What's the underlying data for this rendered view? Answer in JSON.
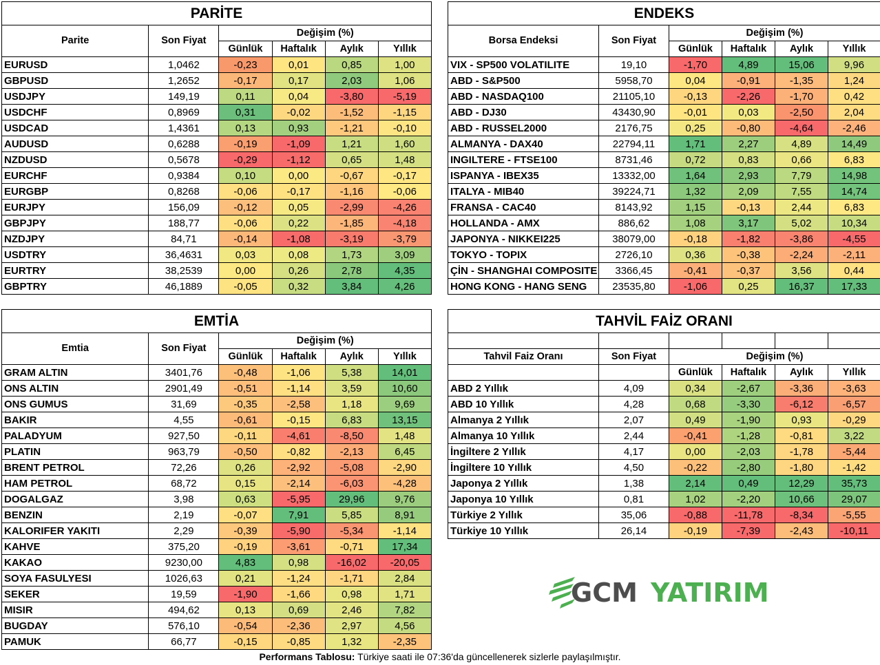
{
  "parite": {
    "title": "PARİTE",
    "col_name": "Parite",
    "col_price": "Son Fiyat",
    "col_change": "Değişim (%)",
    "periods": [
      "Günlük",
      "Haftalık",
      "Aylık",
      "Yıllık"
    ],
    "rows": [
      [
        "EURUSD",
        "1,0462",
        "-0,23",
        "0,01",
        "0,85",
        "1,00"
      ],
      [
        "GBPUSD",
        "1,2652",
        "-0,17",
        "0,17",
        "2,03",
        "1,06"
      ],
      [
        "USDJPY",
        "149,19",
        "0,11",
        "0,04",
        "-3,80",
        "-5,19"
      ],
      [
        "USDCHF",
        "0,8969",
        "0,31",
        "-0,02",
        "-1,52",
        "-1,15"
      ],
      [
        "USDCAD",
        "1,4361",
        "0,13",
        "0,93",
        "-1,21",
        "-0,10"
      ],
      [
        "AUDUSD",
        "0,6288",
        "-0,19",
        "-1,09",
        "1,21",
        "1,60"
      ],
      [
        "NZDUSD",
        "0,5678",
        "-0,29",
        "-1,12",
        "0,65",
        "1,48"
      ],
      [
        "EURCHF",
        "0,9384",
        "0,10",
        "0,00",
        "-0,67",
        "-0,17"
      ],
      [
        "EURGBP",
        "0,8268",
        "-0,06",
        "-0,17",
        "-1,16",
        "-0,06"
      ],
      [
        "EURJPY",
        "156,09",
        "-0,12",
        "0,05",
        "-2,99",
        "-4,26"
      ],
      [
        "GBPJPY",
        "188,77",
        "-0,06",
        "0,22",
        "-1,85",
        "-4,18"
      ],
      [
        "NZDJPY",
        "84,71",
        "-0,14",
        "-1,08",
        "-3,19",
        "-3,79"
      ],
      [
        "USDTRY",
        "36,4631",
        "0,03",
        "0,08",
        "1,73",
        "3,09"
      ],
      [
        "EURTRY",
        "38,2539",
        "0,00",
        "0,26",
        "2,78",
        "4,35"
      ],
      [
        "GBPTRY",
        "46,1889",
        "-0,05",
        "0,32",
        "3,84",
        "4,26"
      ]
    ],
    "colors": [
      [
        "#f8996b",
        "#fee582",
        "#b9d880",
        "#dfe282"
      ],
      [
        "#fbb778",
        "#e1e383",
        "#90ca7d",
        "#dee282"
      ],
      [
        "#bdd981",
        "#f7e983",
        "#f8696b",
        "#f8696b"
      ],
      [
        "#6bbe7b",
        "#fed880",
        "#fdbd7a",
        "#fed680"
      ],
      [
        "#b5d781",
        "#a3d07f",
        "#fec97d",
        "#fee583"
      ],
      [
        "#fa9f6f",
        "#f8696b",
        "#c8dc81",
        "#d0de82"
      ],
      [
        "#f8696b",
        "#f86b6b",
        "#d3df82",
        "#d5e082"
      ],
      [
        "#c6dc81",
        "#fbe983",
        "#fed680",
        "#fee683"
      ],
      [
        "#fee082",
        "#fee282",
        "#fec57d",
        "#fee983"
      ],
      [
        "#fdc07c",
        "#f6e983",
        "#f98a71",
        "#f98270"
      ],
      [
        "#fee082",
        "#dce283",
        "#fdb679",
        "#f98471"
      ],
      [
        "#fcb878",
        "#f86b6b",
        "#f87b6e",
        "#fa9773"
      ],
      [
        "#f2e883",
        "#edea84",
        "#b1d580",
        "#9fcf7e"
      ],
      [
        "#fce983",
        "#d4e082",
        "#8ac87c",
        "#63be7b"
      ],
      [
        "#fee383",
        "#c8dc81",
        "#63be7b",
        "#65be7b"
      ]
    ]
  },
  "endeks": {
    "title": "ENDEKS",
    "col_name": "Borsa Endeksi",
    "col_price": "Son Fiyat",
    "col_change": "Değişim (%)",
    "periods": [
      "Günlük",
      "Haftalık",
      "Aylık",
      "Yıllık"
    ],
    "rows": [
      [
        "VIX  - SP500 VOLATILITE",
        "19,10",
        "-1,70",
        "4,89",
        "15,06",
        "9,96"
      ],
      [
        "ABD - S&P500",
        "5958,70",
        "0,04",
        "-0,91",
        "-1,35",
        "1,24"
      ],
      [
        "ABD - NASDAQ100",
        "21105,10",
        "-0,13",
        "-2,26",
        "-1,70",
        "0,42"
      ],
      [
        "ABD - DJ30",
        "43430,90",
        "-0,01",
        "0,03",
        "-2,50",
        "2,04"
      ],
      [
        "ABD - RUSSEL2000",
        "2176,75",
        "0,25",
        "-0,80",
        "-4,64",
        "-2,46"
      ],
      [
        "ALMANYA - DAX40",
        "22794,11",
        "1,71",
        "2,27",
        "4,89",
        "14,49"
      ],
      [
        "INGILTERE - FTSE100",
        "8731,46",
        "0,72",
        "0,83",
        "0,66",
        "6,83"
      ],
      [
        "ISPANYA - IBEX35",
        "13332,00",
        "1,64",
        "2,93",
        "7,79",
        "14,98"
      ],
      [
        "ITALYA - MIB40",
        "39224,71",
        "1,32",
        "2,09",
        "7,55",
        "14,74"
      ],
      [
        "FRANSA - CAC40",
        "8143,92",
        "1,15",
        "-0,13",
        "2,44",
        "6,83"
      ],
      [
        "HOLLANDA - AMX",
        "886,62",
        "1,08",
        "3,17",
        "5,02",
        "10,34"
      ],
      [
        "JAPONYA - NIKKEI225",
        "38079,00",
        "-0,18",
        "-1,82",
        "-3,86",
        "-4,55"
      ],
      [
        "TOKYO - TOPIX",
        "2726,10",
        "0,36",
        "-0,38",
        "-2,24",
        "-2,11"
      ],
      [
        "ÇİN - SHANGHAI COMPOSITE",
        "3366,45",
        "-0,41",
        "-0,37",
        "3,56",
        "0,44"
      ],
      [
        "HONG KONG - HANG SENG",
        "23535,80",
        "-1,06",
        "0,25",
        "16,37",
        "17,33"
      ]
    ],
    "colors": [
      [
        "#f8696b",
        "#63be7b",
        "#63be7b",
        "#d1df82"
      ],
      [
        "#fde783",
        "#fdb07a",
        "#fdbc7b",
        "#fed881"
      ],
      [
        "#fed680",
        "#f8696b",
        "#fcb179",
        "#fee082"
      ],
      [
        "#fee582",
        "#f2e983",
        "#f9946f",
        "#fedc81"
      ],
      [
        "#f2e783",
        "#fdbb79",
        "#f8696b",
        "#fcb27a"
      ],
      [
        "#63be7b",
        "#9dce7e",
        "#d7e082",
        "#8fc97d"
      ],
      [
        "#c6db81",
        "#d5e082",
        "#ebe683",
        "#fde782"
      ],
      [
        "#6fc17c",
        "#8cc97d",
        "#bbd980",
        "#73c37c"
      ],
      [
        "#8dc97d",
        "#a7d27f",
        "#c0da81",
        "#73c37c"
      ],
      [
        "#a3d07f",
        "#fed880",
        "#ece683",
        "#fde883"
      ],
      [
        "#a6d17f",
        "#80c57c",
        "#d3df82",
        "#c7db81"
      ],
      [
        "#fed27f",
        "#f97f6f",
        "#f9846f",
        "#f8696b"
      ],
      [
        "#dfe282",
        "#fdc37b",
        "#fbac77",
        "#fbb179"
      ],
      [
        "#fcaf78",
        "#fdc27c",
        "#dfe282",
        "#fee282"
      ],
      [
        "#f8696b",
        "#e2e383",
        "#63be7b",
        "#63be7b"
      ]
    ]
  },
  "emtia": {
    "title": "EMTİA",
    "col_name": "Emtia",
    "col_price": "Son Fiyat",
    "col_change": "Değişim (%)",
    "periods": [
      "Günlük",
      "Haftalık",
      "Aylık",
      "Yıllık"
    ],
    "rows": [
      [
        "GRAM ALTIN",
        "3401,76",
        "-0,48",
        "-1,06",
        "5,38",
        "14,01"
      ],
      [
        "ONS ALTIN",
        "2901,49",
        "-0,51",
        "-1,14",
        "3,59",
        "10,60"
      ],
      [
        "ONS GUMUS",
        "31,69",
        "-0,35",
        "-2,58",
        "1,18",
        "9,69"
      ],
      [
        "BAKIR",
        "4,55",
        "-0,61",
        "-0,15",
        "6,83",
        "13,15"
      ],
      [
        "PALADYUM",
        "927,50",
        "-0,11",
        "-4,61",
        "-8,50",
        "1,48"
      ],
      [
        "PLATIN",
        "963,79",
        "-0,50",
        "-0,82",
        "-2,13",
        "6,45"
      ],
      [
        "BRENT PETROL",
        "72,26",
        "0,26",
        "-2,92",
        "-5,08",
        "-2,90"
      ],
      [
        "HAM PETROL",
        "68,72",
        "0,15",
        "-2,14",
        "-6,03",
        "-4,28"
      ],
      [
        "DOGALGAZ",
        "3,98",
        "0,63",
        "-5,95",
        "29,96",
        "9,76"
      ],
      [
        "BENZIN",
        "2,19",
        "-0,07",
        "7,91",
        "5,85",
        "8,91"
      ],
      [
        "KALORIFER YAKITI",
        "2,29",
        "-0,39",
        "-5,90",
        "-5,34",
        "-1,14"
      ],
      [
        "KAHVE",
        "375,20",
        "-0,19",
        "-3,61",
        "-0,71",
        "17,34"
      ],
      [
        "KAKAO",
        "9230,00",
        "4,83",
        "0,98",
        "-16,02",
        "-20,05"
      ],
      [
        "SOYA FASULYESI",
        "1026,63",
        "0,21",
        "-1,24",
        "-1,71",
        "2,84"
      ],
      [
        "SEKER",
        "19,59",
        "-1,90",
        "-1,66",
        "0,98",
        "1,71"
      ],
      [
        "MISIR",
        "494,62",
        "0,13",
        "0,69",
        "2,46",
        "7,82"
      ],
      [
        "BUGDAY",
        "576,10",
        "-0,54",
        "-2,36",
        "2,97",
        "4,56"
      ],
      [
        "PAMUK",
        "66,77",
        "-0,15",
        "-0,85",
        "1,32",
        "-2,35"
      ]
    ],
    "colors": [
      [
        "#fdc07b",
        "#fee382",
        "#cfde81",
        "#63be7b"
      ],
      [
        "#fdbf7b",
        "#fee082",
        "#dce282",
        "#8dc97d"
      ],
      [
        "#fdc97d",
        "#fdc07c",
        "#e9e583",
        "#9bce7e"
      ],
      [
        "#fdbb79",
        "#fee683",
        "#c7dc81",
        "#6fc17c"
      ],
      [
        "#fed880",
        "#f97e6e",
        "#f98a71",
        "#e3e383"
      ],
      [
        "#fdbf7b",
        "#fee082",
        "#fcad77",
        "#bfd981"
      ],
      [
        "#dfe282",
        "#fdb27a",
        "#fb9b74",
        "#fed881"
      ],
      [
        "#e7e483",
        "#fdc07c",
        "#fa9472",
        "#fcc07b"
      ],
      [
        "#cedf81",
        "#f8696b",
        "#63be7b",
        "#9ccd7e"
      ],
      [
        "#fee082",
        "#63be7b",
        "#cbdd81",
        "#96cb7d"
      ],
      [
        "#fdc87c",
        "#f86b6b",
        "#fa9572",
        "#fee282"
      ],
      [
        "#fed27f",
        "#fc9c72",
        "#fedb81",
        "#63be7b"
      ],
      [
        "#63be7b",
        "#d4e082",
        "#f8696b",
        "#f8696b"
      ],
      [
        "#e1e383",
        "#fede82",
        "#fed681",
        "#d9e182"
      ],
      [
        "#f8696b",
        "#fed980",
        "#e8e583",
        "#e1e383"
      ],
      [
        "#e6e483",
        "#d3df82",
        "#e2e383",
        "#b1d580"
      ],
      [
        "#fdbb79",
        "#fdbd7a",
        "#e0e383",
        "#c5db81"
      ],
      [
        "#fed77f",
        "#feda81",
        "#e8e583",
        "#fdc37b"
      ]
    ]
  },
  "tahvil": {
    "title": "TAHVİL FAİZ ORANI",
    "col_name": "Tahvil Faiz Oranı",
    "col_price": "Son Fiyat",
    "col_change": "Değişim (%)",
    "periods": [
      "Günlük",
      "Haftalık",
      "Aylık",
      "Yıllık"
    ],
    "rows": [
      [
        "ABD 2 Yıllık",
        "4,09",
        "0,34",
        "-2,67",
        "-3,36",
        "-3,63"
      ],
      [
        "ABD 10 Yıllık",
        "4,28",
        "0,68",
        "-3,30",
        "-6,12",
        "-6,57"
      ],
      [
        "Almanya 2 Yıllık",
        "2,07",
        "0,49",
        "-1,90",
        "0,93",
        "-0,29"
      ],
      [
        "Almanya 10 Yıllık",
        "2,44",
        "-0,41",
        "-1,28",
        "-0,81",
        "3,22"
      ],
      [
        "İngiltere 2 Yıllık",
        "4,17",
        "0,00",
        "-2,03",
        "-1,78",
        "-5,44"
      ],
      [
        "İngiltere 10 Yıllık",
        "4,50",
        "-0,22",
        "-2,80",
        "-1,80",
        "-1,42"
      ],
      [
        "Japonya 2 Yıllık",
        "1,38",
        "2,14",
        "0,49",
        "12,29",
        "35,73"
      ],
      [
        "Japonya 10 Yıllık",
        "0,81",
        "1,02",
        "-2,20",
        "10,66",
        "29,07"
      ],
      [
        "Türkiye 2 Yıllık",
        "35,06",
        "-0,88",
        "-11,78",
        "-8,34",
        "-5,55"
      ],
      [
        "Türkiye 10 Yıllık",
        "26,14",
        "-0,19",
        "-7,39",
        "-2,43",
        "-10,11"
      ]
    ],
    "colors": [
      [
        "#d9e182",
        "#9ecf7e",
        "#fcae78",
        "#fdb37a"
      ],
      [
        "#c0da81",
        "#96cc7d",
        "#f97d6e",
        "#fa9f74"
      ],
      [
        "#d2df82",
        "#a9d37f",
        "#e9e583",
        "#fed880"
      ],
      [
        "#fba16f",
        "#aed47f",
        "#fedb81",
        "#c2da81"
      ],
      [
        "#e9e583",
        "#a6d17f",
        "#fed580",
        "#fba875"
      ],
      [
        "#fcc07b",
        "#98cc7d",
        "#fed580",
        "#fedd81"
      ],
      [
        "#63be7b",
        "#63be7b",
        "#63be7b",
        "#63be7b"
      ],
      [
        "#a8d27f",
        "#a2d07f",
        "#6ec17c",
        "#7dc57c"
      ],
      [
        "#f8696b",
        "#f8696b",
        "#f8696b",
        "#fba575"
      ],
      [
        "#fed27f",
        "#f8696b",
        "#fdbd7a",
        "#f8696b"
      ]
    ]
  },
  "logo": {
    "left": "GCM",
    "right": "YATIRIM"
  },
  "footer": {
    "bold": "Performans Tablosu:",
    "text": " Türkiye saati ile 07:36'da güncellenerek sizlerle paylaşılmıştır."
  }
}
